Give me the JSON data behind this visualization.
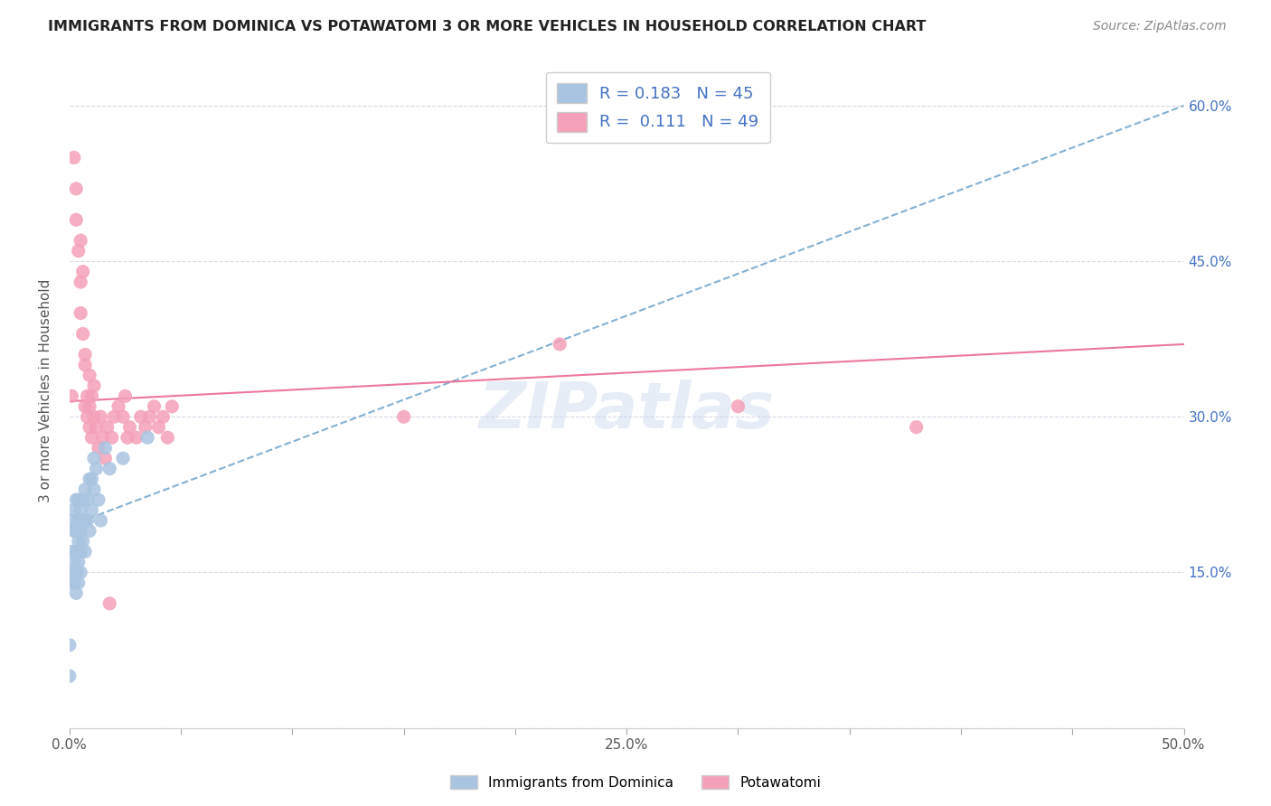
{
  "title": "IMMIGRANTS FROM DOMINICA VS POTAWATOMI 3 OR MORE VEHICLES IN HOUSEHOLD CORRELATION CHART",
  "source": "Source: ZipAtlas.com",
  "ylabel": "3 or more Vehicles in Household",
  "x_min": 0.0,
  "x_max": 0.5,
  "y_min": 0.0,
  "y_max": 0.65,
  "x_ticks": [
    0.0,
    0.05,
    0.1,
    0.15,
    0.2,
    0.25,
    0.3,
    0.35,
    0.4,
    0.45,
    0.5
  ],
  "x_tick_labels": [
    "0.0%",
    "",
    "",
    "",
    "",
    "25.0%",
    "",
    "",
    "",
    "",
    "50.0%"
  ],
  "y_ticks_right": [
    0.15,
    0.3,
    0.45,
    0.6
  ],
  "y_tick_labels_right": [
    "15.0%",
    "30.0%",
    "45.0%",
    "60.0%"
  ],
  "dominica_R": 0.183,
  "dominica_N": 45,
  "potawatomi_R": 0.111,
  "potawatomi_N": 49,
  "dominica_color": "#a8c4e0",
  "potawatomi_color": "#f4a0b8",
  "dominica_line_color": "#5090c0",
  "potawatomi_line_color": "#e8608a",
  "background_color": "#ffffff",
  "grid_color": "#d8d8e8",
  "watermark": "ZIPatlas",
  "dominica_scatter_x": [
    0.0,
    0.0,
    0.001,
    0.001,
    0.001,
    0.001,
    0.002,
    0.002,
    0.002,
    0.002,
    0.003,
    0.003,
    0.003,
    0.003,
    0.003,
    0.004,
    0.004,
    0.004,
    0.004,
    0.004,
    0.005,
    0.005,
    0.005,
    0.005,
    0.006,
    0.006,
    0.006,
    0.007,
    0.007,
    0.007,
    0.008,
    0.008,
    0.009,
    0.009,
    0.01,
    0.01,
    0.011,
    0.011,
    0.012,
    0.013,
    0.014,
    0.016,
    0.018,
    0.024,
    0.035
  ],
  "dominica_scatter_y": [
    0.05,
    0.08,
    0.14,
    0.15,
    0.17,
    0.2,
    0.14,
    0.16,
    0.19,
    0.21,
    0.13,
    0.15,
    0.17,
    0.19,
    0.22,
    0.14,
    0.16,
    0.18,
    0.2,
    0.22,
    0.15,
    0.17,
    0.19,
    0.21,
    0.18,
    0.2,
    0.22,
    0.17,
    0.2,
    0.23,
    0.2,
    0.22,
    0.19,
    0.24,
    0.21,
    0.24,
    0.23,
    0.26,
    0.25,
    0.22,
    0.2,
    0.27,
    0.25,
    0.26,
    0.28
  ],
  "potawatomi_scatter_x": [
    0.001,
    0.002,
    0.003,
    0.003,
    0.004,
    0.005,
    0.005,
    0.005,
    0.006,
    0.006,
    0.007,
    0.007,
    0.007,
    0.008,
    0.008,
    0.009,
    0.009,
    0.009,
    0.01,
    0.01,
    0.011,
    0.011,
    0.012,
    0.013,
    0.014,
    0.015,
    0.016,
    0.017,
    0.018,
    0.019,
    0.02,
    0.022,
    0.024,
    0.025,
    0.026,
    0.027,
    0.03,
    0.032,
    0.034,
    0.036,
    0.038,
    0.04,
    0.042,
    0.044,
    0.046,
    0.15,
    0.22,
    0.3,
    0.38
  ],
  "potawatomi_scatter_y": [
    0.32,
    0.55,
    0.52,
    0.49,
    0.46,
    0.47,
    0.43,
    0.4,
    0.44,
    0.38,
    0.36,
    0.35,
    0.31,
    0.3,
    0.32,
    0.34,
    0.29,
    0.31,
    0.28,
    0.32,
    0.3,
    0.33,
    0.29,
    0.27,
    0.3,
    0.28,
    0.26,
    0.29,
    0.12,
    0.28,
    0.3,
    0.31,
    0.3,
    0.32,
    0.28,
    0.29,
    0.28,
    0.3,
    0.29,
    0.3,
    0.31,
    0.29,
    0.3,
    0.28,
    0.31,
    0.3,
    0.37,
    0.31,
    0.29
  ]
}
